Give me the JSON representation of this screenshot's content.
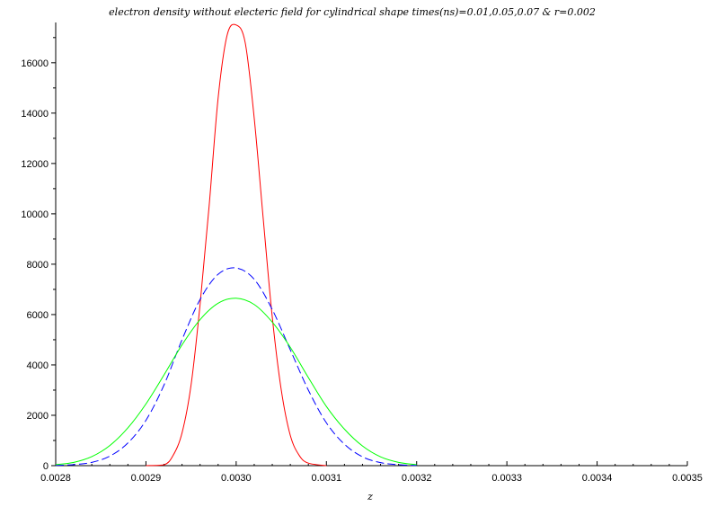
{
  "chart_data": {
    "type": "line",
    "title": "electron density without electeric field for cylindrical shape   times(ns)=0.01,0.05,0.07 & r=0.002",
    "xlabel": "z",
    "ylabel": "",
    "xlim": [
      0.0028,
      0.0035
    ],
    "ylim": [
      0,
      17600
    ],
    "x_ticks": [
      "0.0028",
      "0.0029",
      "0.0030",
      "0.0031",
      "0.0032",
      "0.0033",
      "0.0034",
      "0.0035"
    ],
    "x_tick_values": [
      0.0028,
      0.0029,
      0.003,
      0.0031,
      0.0032,
      0.0033,
      0.0034,
      0.0035
    ],
    "y_ticks": [
      "0",
      "2000",
      "4000",
      "6000",
      "8000",
      "10000",
      "12000",
      "14000",
      "16000"
    ],
    "y_tick_values": [
      0,
      2000,
      4000,
      6000,
      8000,
      10000,
      12000,
      14000,
      16000
    ],
    "grid": false,
    "series": [
      {
        "color": "#ff0000",
        "dash": "solid",
        "x": [
          0.0029,
          0.00292,
          0.00293,
          0.00294,
          0.00295,
          0.00296,
          0.00297,
          0.00298,
          0.00299,
          0.003,
          0.00301,
          0.00302,
          0.00303,
          0.00304,
          0.00305,
          0.00306,
          0.00307,
          0.00308,
          0.0031
        ],
        "y": [
          0,
          30,
          400,
          1300,
          3200,
          6400,
          10300,
          14600,
          17100,
          17500,
          16800,
          13800,
          9800,
          5900,
          3000,
          1200,
          400,
          100,
          0
        ]
      },
      {
        "color": "#0000ff",
        "dash": "dashed",
        "x": [
          0.0028,
          0.00282,
          0.00284,
          0.00286,
          0.00288,
          0.0029,
          0.00292,
          0.00294,
          0.00296,
          0.00298,
          0.003,
          0.00302,
          0.00304,
          0.00306,
          0.00308,
          0.0031,
          0.00312,
          0.00314,
          0.00316,
          0.00318,
          0.0032
        ],
        "y": [
          10,
          40,
          130,
          380,
          900,
          1800,
          3200,
          5000,
          6600,
          7600,
          7850,
          7400,
          6200,
          4600,
          3000,
          1700,
          850,
          350,
          120,
          35,
          10
        ]
      },
      {
        "color": "#00ff00",
        "dash": "solid",
        "x": [
          0.0028,
          0.00282,
          0.00284,
          0.00286,
          0.00288,
          0.0029,
          0.00292,
          0.00294,
          0.00296,
          0.00298,
          0.003,
          0.00302,
          0.00304,
          0.00306,
          0.00308,
          0.0031,
          0.00312,
          0.00314,
          0.00316,
          0.00318,
          0.0032
        ],
        "y": [
          40,
          130,
          360,
          800,
          1500,
          2450,
          3600,
          4800,
          5800,
          6450,
          6650,
          6400,
          5700,
          4700,
          3500,
          2350,
          1450,
          780,
          350,
          130,
          40
        ]
      }
    ]
  }
}
